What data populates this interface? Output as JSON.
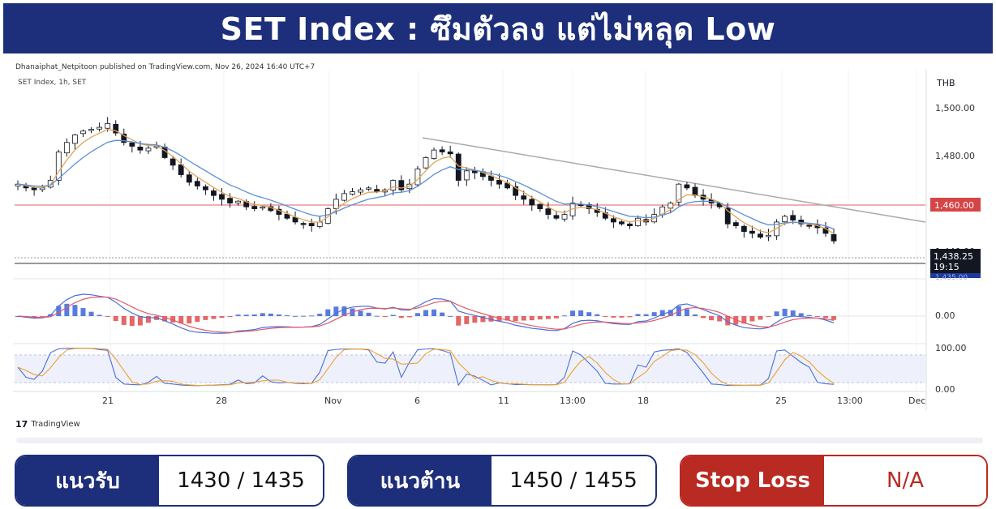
{
  "header": {
    "title": "SET Index : ซึมตัวลง แต่ไม่หลุด Low"
  },
  "publisher": "Dhanaiphat_Netpitoon published on TradingView.com, Nov 26, 2024 16:40 UTC+7",
  "symbol_label": "SET Index, 1h, SET",
  "brand": "TradingView",
  "colors": {
    "banner": "#1d2f7a",
    "up": "#ffffff",
    "down": "#131722",
    "ema_fast": "#e0a458",
    "ema_slow": "#5b8fd6",
    "support_line": "#e88080",
    "resistance_line": "#555555",
    "macd": "#4a6fd8",
    "signal": "#e05a6a",
    "hist_up": "#3b64d8",
    "hist_down": "#e04b4b",
    "stoch_k": "#4a6fd8",
    "stoch_d": "#f0a030",
    "stop_red": "#b92a22"
  },
  "chart_data": {
    "type": "candlestick",
    "currency": "THB",
    "price_axis_ticks": [
      "1,500.00",
      "1,480.00",
      "1,460.00",
      "1,440.00"
    ],
    "ylim": [
      1424,
      1525
    ],
    "x_tick_labels": [
      "21",
      "28",
      "Nov",
      "6",
      "11",
      "13:00",
      "18",
      "25",
      "13:00",
      "Dec"
    ],
    "marked_level": "1,460.00",
    "last_price": "1,438.25",
    "countdown": "19:15",
    "extra_label": "1,435.00",
    "support_level": 1460,
    "last_value": 1438.25,
    "close_series": [
      1468,
      1466,
      1465,
      1466,
      1470,
      1485,
      1490,
      1494,
      1496,
      1497,
      1498,
      1500,
      1495,
      1490,
      1488,
      1486,
      1487,
      1488,
      1482,
      1478,
      1473,
      1469,
      1467,
      1465,
      1462,
      1460,
      1458,
      1459,
      1456,
      1455,
      1456,
      1454,
      1452,
      1450,
      1448,
      1447,
      1446,
      1448,
      1455,
      1460,
      1463,
      1464,
      1465,
      1466,
      1464,
      1465,
      1470,
      1465,
      1468,
      1476,
      1482,
      1486,
      1485,
      1484,
      1470,
      1475,
      1474,
      1472,
      1470,
      1468,
      1466,
      1462,
      1460,
      1457,
      1455,
      1452,
      1450,
      1452,
      1458,
      1457,
      1455,
      1453,
      1450,
      1448,
      1447,
      1446,
      1450,
      1448,
      1452,
      1456,
      1458,
      1468,
      1466,
      1462,
      1460,
      1458,
      1456,
      1447,
      1446,
      1443,
      1442,
      1440,
      1441,
      1448,
      1451,
      1449,
      1447,
      1446,
      1445,
      1442,
      1438
    ]
  },
  "indicators": {
    "macd_axis": "0.00",
    "stoch_axis": [
      "100.00",
      "0.00"
    ]
  },
  "levels": {
    "support_label": "แนวรับ",
    "support_value": "1430 / 1435",
    "resistance_label": "แนวต้าน",
    "resistance_value": "1450 / 1455",
    "stop_label": "Stop Loss",
    "stop_value": "N/A"
  }
}
